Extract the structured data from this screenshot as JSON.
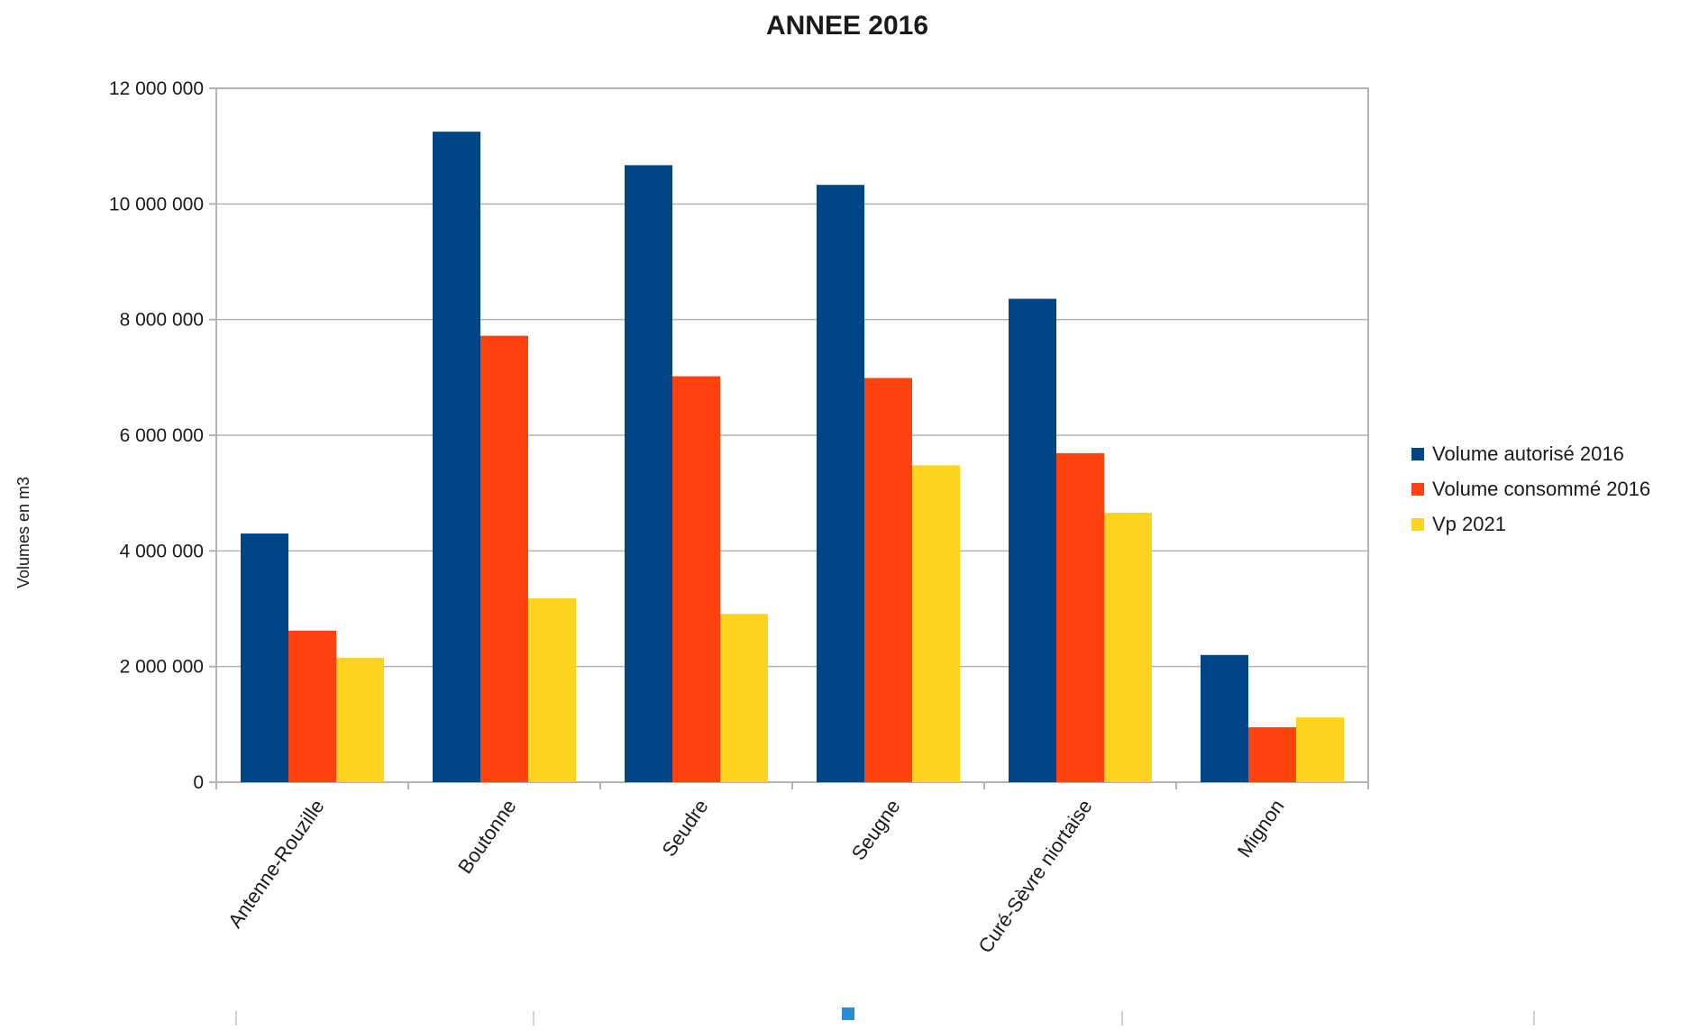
{
  "chart_data": {
    "type": "bar",
    "title": "ANNEE 2016",
    "xlabel": "",
    "ylabel": "Volumes en m3",
    "ylim": [
      0,
      12000000
    ],
    "yticks": [
      0,
      2000000,
      4000000,
      6000000,
      8000000,
      10000000,
      12000000
    ],
    "ytick_labels": [
      "0",
      "2 000 000",
      "4 000 000",
      "6 000 000",
      "8 000 000",
      "10 000 000",
      "12 000 000"
    ],
    "grid": true,
    "legend_position": "right",
    "categories": [
      "Antenne-Rouzille",
      "Boutonne",
      "Seudre",
      "Seugne",
      "Curé-Sèvre niortaise",
      "Mignon"
    ],
    "series": [
      {
        "name": "Volume autorisé 2016",
        "color": "#004586",
        "values": [
          4300000,
          11250000,
          10670000,
          10330000,
          8360000,
          2200000
        ]
      },
      {
        "name": "Volume consommé 2016",
        "color": "#ff420e",
        "values": [
          2620000,
          7720000,
          7020000,
          6990000,
          5690000,
          950000
        ]
      },
      {
        "name": "Vp 2021",
        "color": "#ffd320",
        "values": [
          2150000,
          3180000,
          2910000,
          5480000,
          4660000,
          1120000
        ]
      }
    ]
  },
  "colors": {
    "grid": "#b3b3b3",
    "text": "#1a1a1a",
    "marker": "#2a8dd4"
  }
}
